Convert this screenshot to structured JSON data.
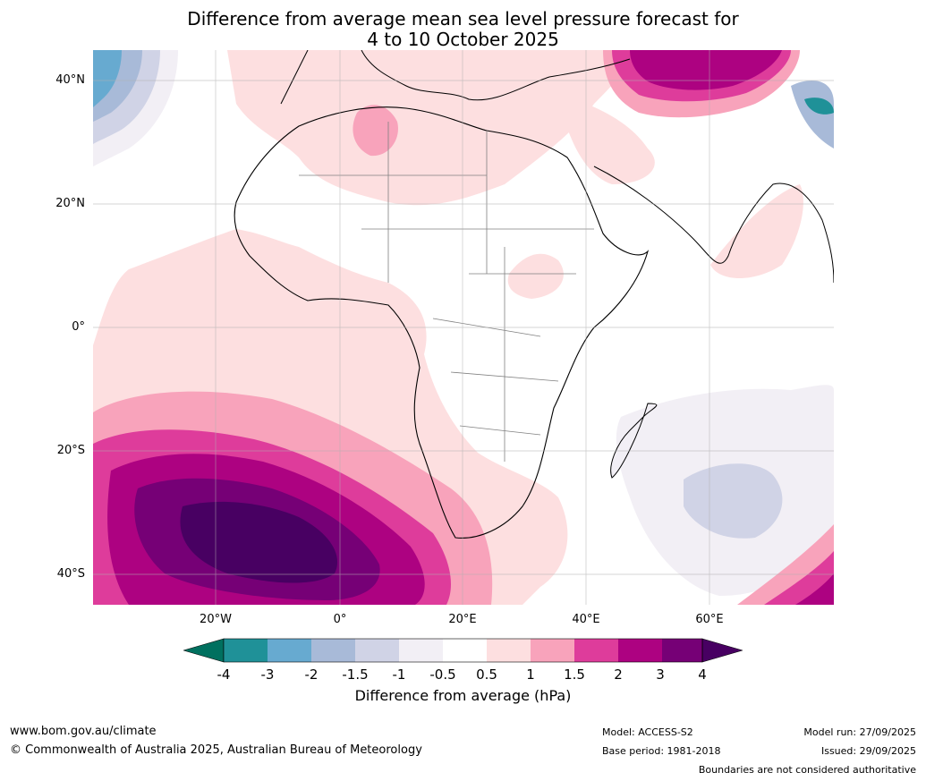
{
  "title": {
    "line1": "Difference from average mean sea level pressure forecast for",
    "line2": "4 to 10 October 2025"
  },
  "map": {
    "region": "Africa",
    "lat_labels": [
      "40°N",
      "20°N",
      "0°",
      "20°S",
      "40°S"
    ],
    "lon_labels": [
      "20°W",
      "0°",
      "20°E",
      "40°E",
      "60°E"
    ]
  },
  "colorbar": {
    "label": "Difference from average (hPa)",
    "ticks": [
      "-4",
      "-3",
      "-2",
      "-1.5",
      "-1",
      "-0.5",
      "0.5",
      "1",
      "1.5",
      "2",
      "3",
      "4"
    ],
    "colors": {
      "lt_-4": "#00705f",
      "-4_-3": "#1f9198",
      "-3_-2": "#67aad0",
      "-2_-1.5": "#a8bad8",
      "-1.5_-1": "#d0d3e6",
      "-1_-0.5": "#f2eff5",
      "-0.5_0.5": "#ffffff",
      "0.5_1": "#fddfe0",
      "1_1.5": "#f8a3bb",
      "1.5_2": "#de3c9b",
      "2_3": "#ad0281",
      "3_4": "#760076",
      "gt_4": "#480062"
    }
  },
  "footer": {
    "url": "www.bom.gov.au/climate",
    "copyright": "© Commonwealth of Australia 2025, Australian Bureau of Meteorology",
    "model": "Model: ACCESS-S2",
    "base_period": "Base period: 1981-2018",
    "model_run": "Model run: 27/09/2025",
    "issued": "Issued: 29/09/2025",
    "disclaimer": "Boundaries are not considered authoritative"
  }
}
